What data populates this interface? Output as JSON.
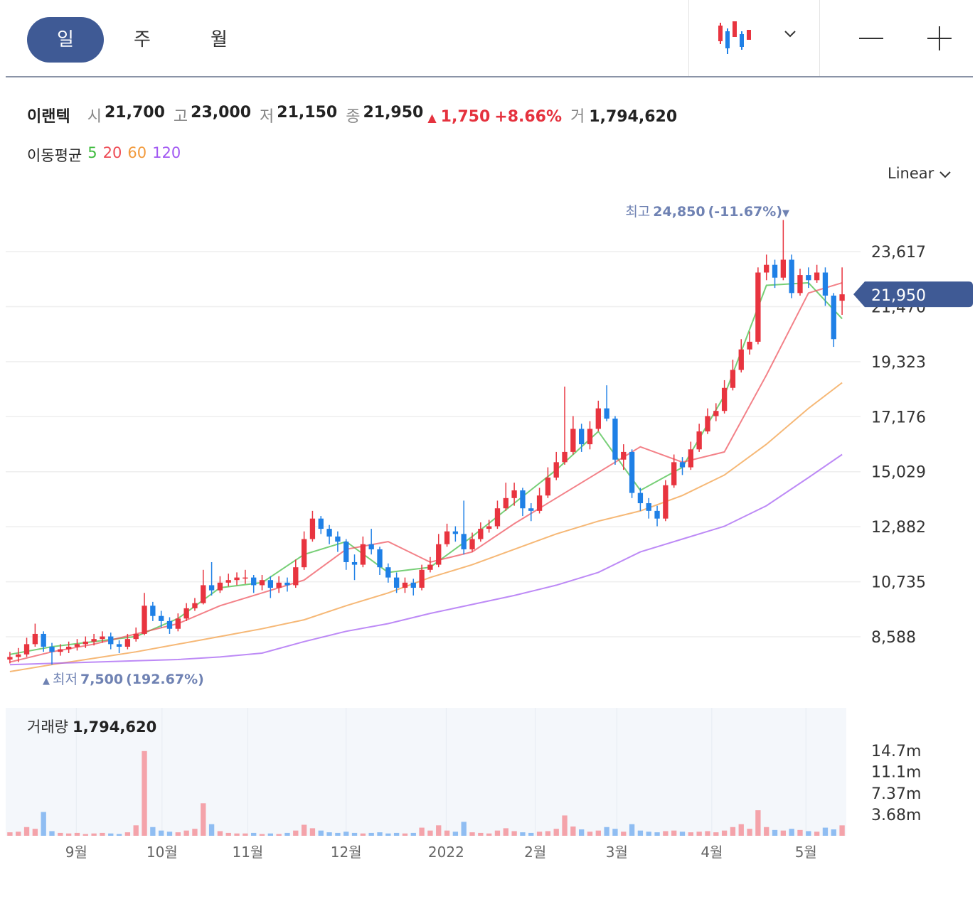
{
  "toolbar": {
    "tabs": [
      "일",
      "주",
      "월"
    ]
  },
  "header": {
    "name": "이랜텍",
    "fields": [
      {
        "label": "시",
        "value": "21,700"
      },
      {
        "label": "고",
        "value": "23,000"
      },
      {
        "label": "저",
        "value": "21,150"
      },
      {
        "label": "종",
        "value": "21,950"
      }
    ],
    "change_arrow": "▲",
    "change": "1,750",
    "change_pct": "+8.66%",
    "volume_label": "거",
    "volume": "1,794,620",
    "scale": "Linear"
  },
  "chart_data": [
    {
      "type": "candlestick",
      "up_color": "#e8343f",
      "down_color": "#1f80e6",
      "xlim": [
        -0.5,
        99.5
      ],
      "xticks": [
        {
          "value": 7.9,
          "label": "9월"
        },
        {
          "value": 18.1,
          "label": "10월"
        },
        {
          "value": 28.3,
          "label": "11월"
        },
        {
          "value": 40.0,
          "label": "12월"
        },
        {
          "value": 51.9,
          "label": "2022"
        },
        {
          "value": 62.5,
          "label": "2월"
        },
        {
          "value": 72.2,
          "label": "3월"
        },
        {
          "value": 83.5,
          "label": "4월"
        },
        {
          "value": 94.7,
          "label": "5월"
        }
      ],
      "ylim": [
        6813,
        25115
      ],
      "yticks": [
        {
          "value": 8588,
          "label": "8,588"
        },
        {
          "value": 10735,
          "label": "10,735"
        },
        {
          "value": 12882,
          "label": "12,882"
        },
        {
          "value": 15029,
          "label": "15,029"
        },
        {
          "value": 17176,
          "label": "17,176"
        },
        {
          "value": 19323,
          "label": "19,323"
        },
        {
          "value": 21470,
          "label": "21,470"
        },
        {
          "value": 23617,
          "label": "23,617"
        }
      ],
      "grid": true,
      "open": [
        7700,
        7800,
        7900,
        8300,
        8700,
        8200,
        8000,
        8100,
        8200,
        8300,
        8400,
        8500,
        8600,
        8300,
        8200,
        8500,
        8700,
        9800,
        9400,
        9200,
        8900,
        9300,
        9700,
        9900,
        10600,
        10400,
        10700,
        10800,
        10900,
        10900,
        10600,
        10800,
        10500,
        10700,
        10600,
        11300,
        12400,
        13200,
        12800,
        12500,
        12300,
        11500,
        11400,
        12200,
        12000,
        11300,
        10900,
        10500,
        10700,
        10500,
        11200,
        11400,
        12200,
        12700,
        12600,
        12000,
        12400,
        12800,
        12900,
        13600,
        14000,
        14300,
        13600,
        13500,
        14100,
        14800,
        15400,
        15800,
        16700,
        16100,
        16700,
        17500,
        17100,
        15500,
        15800,
        14200,
        13800,
        13500,
        13200,
        14500,
        15400,
        15200,
        15900,
        16600,
        17200,
        17400,
        18300,
        19000,
        19800,
        20100,
        22800,
        23100,
        22600,
        23300,
        22000,
        22700,
        22500,
        22800,
        21900,
        21700
      ],
      "high": [
        8000,
        8150,
        8550,
        9100,
        8800,
        8350,
        8300,
        8400,
        8500,
        8600,
        8700,
        8800,
        8750,
        8450,
        8700,
        8950,
        10300,
        9950,
        9600,
        9350,
        9500,
        9900,
        10100,
        11200,
        11500,
        10950,
        11050,
        11100,
        11200,
        11000,
        11000,
        10950,
        10950,
        10900,
        11600,
        12700,
        13500,
        13300,
        12950,
        12700,
        12400,
        11800,
        12500,
        12800,
        12100,
        11450,
        11100,
        10900,
        10850,
        11400,
        11700,
        12600,
        13000,
        12900,
        13900,
        12650,
        13050,
        13150,
        13900,
        14600,
        14600,
        14400,
        13800,
        14400,
        15200,
        15800,
        18350,
        17200,
        16900,
        17000,
        17800,
        18400,
        17200,
        16100,
        15900,
        14400,
        14000,
        13700,
        14700,
        15700,
        15600,
        16200,
        16900,
        17500,
        17700,
        18600,
        19400,
        20200,
        20500,
        23000,
        23500,
        23300,
        24850,
        23500,
        22950,
        23000,
        23100,
        23000,
        22000,
        23000
      ],
      "low": [
        7550,
        7600,
        7800,
        8200,
        8000,
        7500,
        7850,
        7950,
        8050,
        8150,
        8250,
        8350,
        8100,
        7950,
        8100,
        8400,
        8650,
        9200,
        8950,
        8700,
        8800,
        9200,
        9600,
        9850,
        10200,
        10300,
        10550,
        10600,
        10650,
        10300,
        10400,
        10100,
        10300,
        10350,
        10500,
        11200,
        12300,
        12600,
        12200,
        11900,
        11200,
        10800,
        11300,
        11800,
        11000,
        10700,
        10300,
        10300,
        10200,
        10400,
        11100,
        11300,
        12100,
        12300,
        11800,
        11900,
        12300,
        12650,
        12800,
        13500,
        13700,
        13300,
        13100,
        13400,
        14000,
        14700,
        15300,
        15700,
        15800,
        15900,
        16600,
        17000,
        15300,
        15100,
        14000,
        13500,
        13200,
        12900,
        13100,
        14400,
        14900,
        15100,
        15800,
        16500,
        17000,
        17300,
        18200,
        18900,
        19600,
        20000,
        22500,
        22200,
        22500,
        21800,
        21900,
        22200,
        22400,
        21500,
        19900,
        21150
      ],
      "close": [
        7800,
        7900,
        8300,
        8700,
        8200,
        8000,
        8100,
        8200,
        8300,
        8400,
        8500,
        8600,
        8300,
        8200,
        8500,
        8700,
        9800,
        9400,
        9200,
        8900,
        9300,
        9700,
        9900,
        10600,
        10400,
        10700,
        10800,
        10900,
        10900,
        10600,
        10800,
        10500,
        10700,
        10600,
        11300,
        12400,
        13200,
        12800,
        12500,
        12300,
        11500,
        11400,
        12200,
        12000,
        11300,
        10900,
        10500,
        10700,
        10500,
        11200,
        11400,
        12200,
        12700,
        12600,
        12000,
        12400,
        12800,
        12900,
        13600,
        14000,
        14300,
        13600,
        13500,
        14100,
        14800,
        15400,
        15800,
        16700,
        16100,
        16700,
        17500,
        17100,
        15500,
        15800,
        14200,
        13800,
        13500,
        13200,
        14500,
        15400,
        15200,
        15900,
        16600,
        17200,
        17400,
        18300,
        19000,
        19800,
        20100,
        22800,
        23100,
        22600,
        23300,
        22000,
        22700,
        22500,
        22800,
        21900,
        20200,
        21950
      ],
      "moving_averages": {
        "label": "이동평균",
        "x": [
          0,
          5,
          10,
          15,
          20,
          25,
          30,
          35,
          40,
          45,
          50,
          55,
          60,
          65,
          70,
          75,
          80,
          85,
          90,
          95,
          99
        ],
        "series": [
          {
            "name": "5",
            "color": "#3dbb3d",
            "values": [
              7900,
              8200,
              8400,
              8600,
              9300,
              10500,
              10700,
              11800,
              12300,
              11100,
              11300,
              12500,
              13800,
              15100,
              16600,
              14300,
              15200,
              18000,
              22300,
              22400,
              21000
            ]
          },
          {
            "name": "20",
            "color": "#ee4b55",
            "values": [
              7600,
              8000,
              8300,
              8700,
              9100,
              9800,
              10300,
              10800,
              12000,
              12300,
              11500,
              11900,
              13000,
              14000,
              15000,
              16000,
              15400,
              15800,
              18800,
              22000,
              22400
            ]
          },
          {
            "name": "60",
            "color": "#f29a3c",
            "values": [
              7230,
              7500,
              7750,
              8000,
              8300,
              8600,
              8900,
              9250,
              9800,
              10300,
              10900,
              11400,
              12000,
              12600,
              13100,
              13500,
              14100,
              14900,
              16100,
              17500,
              18500
            ]
          },
          {
            "name": "120",
            "color": "#a158f2",
            "values": [
              7500,
              7550,
              7600,
              7650,
              7700,
              7800,
              7950,
              8400,
              8800,
              9100,
              9500,
              9850,
              10200,
              10600,
              11100,
              11900,
              12400,
              12900,
              13700,
              14800,
              15700
            ]
          }
        ]
      },
      "annotations": [
        {
          "label": "최고",
          "value": "24,850",
          "pct": "(-11.67%)",
          "marker": "▼"
        },
        {
          "marker": "▲",
          "label": "최저",
          "value": "7,500",
          "pct": "(192.67%)"
        }
      ],
      "last_price_label": "21,950"
    },
    {
      "type": "bar",
      "title": "거래량",
      "title_value": "1,794,620",
      "ylim": [
        0,
        22050000
      ],
      "yticks": [
        {
          "value": 3680000,
          "label": "3.68m"
        },
        {
          "value": 7370000,
          "label": "7.37m"
        },
        {
          "value": 11100000,
          "label": "11.1m"
        },
        {
          "value": 14700000,
          "label": "14.7m"
        }
      ],
      "up_color": "#f4a3aa",
      "down_color": "#8fbdf2",
      "values": [
        600000,
        700000,
        1500000,
        1200000,
        4100000,
        800000,
        500000,
        400000,
        500000,
        300000,
        400000,
        500000,
        400000,
        300000,
        600000,
        1800000,
        14600000,
        1500000,
        900000,
        700000,
        600000,
        900000,
        1200000,
        5600000,
        2000000,
        800000,
        500000,
        400000,
        400000,
        500000,
        300000,
        400000,
        300000,
        500000,
        900000,
        1900000,
        1300000,
        900000,
        600000,
        500000,
        700000,
        500000,
        400000,
        500000,
        600000,
        400000,
        500000,
        400000,
        500000,
        1400000,
        900000,
        1800000,
        900000,
        700000,
        2400000,
        600000,
        500000,
        400000,
        900000,
        1300000,
        800000,
        600000,
        500000,
        700000,
        800000,
        1200000,
        3500000,
        1600000,
        1100000,
        700000,
        900000,
        1500000,
        1200000,
        700000,
        2000000,
        900000,
        700000,
        600000,
        800000,
        900000,
        700000,
        600000,
        700000,
        800000,
        600000,
        900000,
        1500000,
        2000000,
        1200000,
        4400000,
        1500000,
        1000000,
        900000,
        1200000,
        1000000,
        800000,
        700000,
        1400000,
        1100000,
        1794620
      ]
    }
  ]
}
